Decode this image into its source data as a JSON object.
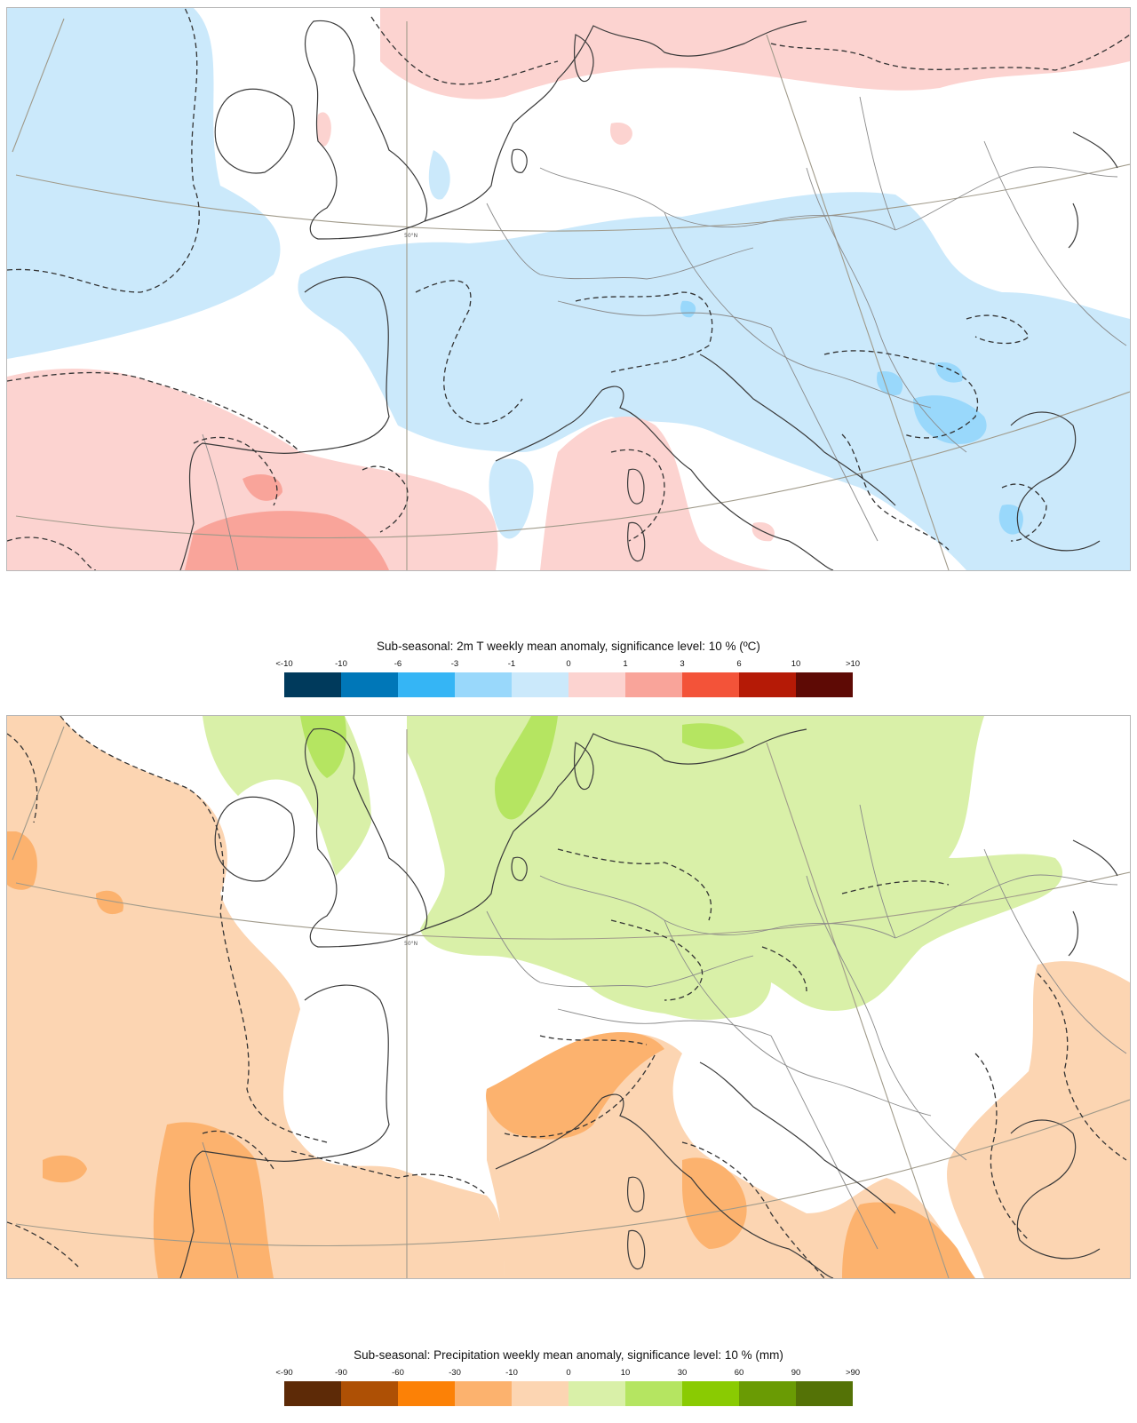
{
  "maps": {
    "temperature": {
      "title": "Sub-seasonal: 2m T weekly mean anomaly, significance level: 10 % (ºC)",
      "gridline_label": "50°N",
      "legend": {
        "ticks": [
          "<-10",
          "-10",
          "-6",
          "-3",
          "-1",
          "0",
          "1",
          "3",
          "6",
          "10",
          ">10"
        ],
        "colors": [
          "#003a5c",
          "#0077b8",
          "#35b5f5",
          "#99d8fb",
          "#cbe9fb",
          "#fcd3d0",
          "#f9a49a",
          "#f35339",
          "#b51a06",
          "#5e0a05"
        ]
      }
    },
    "precipitation": {
      "title": "Sub-seasonal: Precipitation weekly mean anomaly, significance level: 10 % (mm)",
      "gridline_label": "50°N",
      "legend": {
        "ticks": [
          "<-90",
          "-90",
          "-60",
          "-30",
          "-10",
          "0",
          "10",
          "30",
          "60",
          "90",
          ">90"
        ],
        "colors": [
          "#5d2a07",
          "#ae5005",
          "#fc8106",
          "#fcb26e",
          "#fcd5b2",
          "#d9f0a8",
          "#b5e561",
          "#8acb02",
          "#6a9b04",
          "#547206"
        ]
      }
    }
  }
}
